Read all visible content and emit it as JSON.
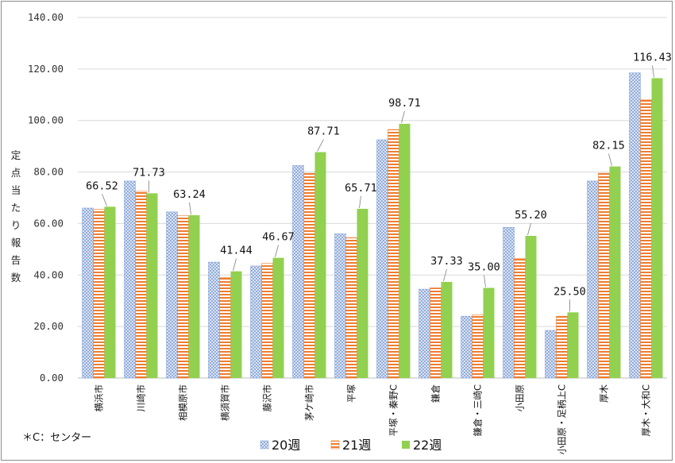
{
  "chart_data": {
    "type": "bar",
    "ylabel": "定点当たり報告数",
    "ylim": [
      0,
      140
    ],
    "yticks": [
      "0.00",
      "20.00",
      "40.00",
      "60.00",
      "80.00",
      "100.00",
      "120.00",
      "140.00"
    ],
    "grid": true,
    "legend_position": "bottom-center",
    "categories": [
      "横浜市",
      "川崎市",
      "相模原市",
      "横須賀市",
      "藤沢市",
      "茅ケ崎市",
      "平塚",
      "平塚・秦野C",
      "鎌倉",
      "鎌倉・三崎C",
      "小田原",
      "小田原・足柄上C",
      "厚木",
      "厚木・大和C"
    ],
    "series": [
      {
        "name": "20週",
        "color": "#8ea9db",
        "pattern": "dots",
        "values": [
          66.0,
          76.5,
          64.5,
          45.0,
          43.5,
          82.5,
          56.0,
          92.5,
          34.5,
          24.0,
          58.5,
          18.5,
          76.5,
          118.5
        ]
      },
      {
        "name": "21週",
        "color": "#ed7d31",
        "pattern": "stripes",
        "values": [
          65.5,
          72.5,
          63.0,
          39.0,
          44.5,
          79.5,
          54.5,
          96.5,
          35.0,
          24.5,
          46.5,
          24.0,
          79.5,
          108.0
        ]
      },
      {
        "name": "22週",
        "color": "#92d050",
        "pattern": "solid",
        "values": [
          66.52,
          71.73,
          63.24,
          41.44,
          46.67,
          87.71,
          65.71,
          98.71,
          37.33,
          35.0,
          55.2,
          25.5,
          82.15,
          116.43
        ]
      }
    ],
    "data_labels": [
      "66.52",
      "71.73",
      "63.24",
      "41.44",
      "46.67",
      "87.71",
      "65.71",
      "98.71",
      "37.33",
      "35.00",
      "55.20",
      "25.50",
      "82.15",
      "116.43"
    ]
  },
  "note": "＊C：センター"
}
